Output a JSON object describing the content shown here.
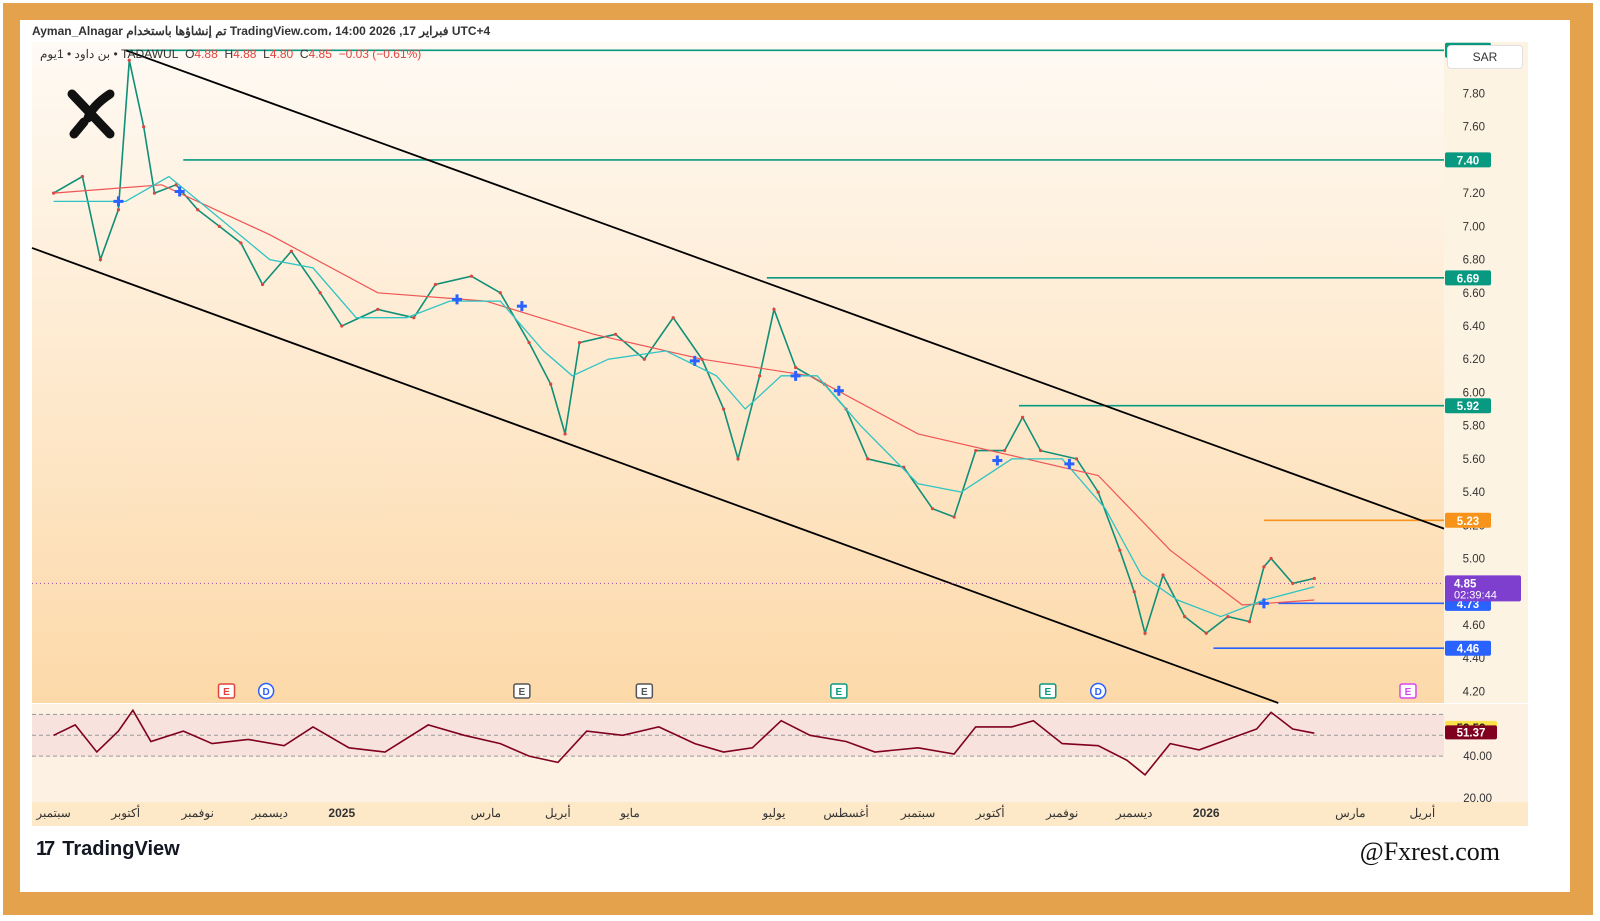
{
  "header": {
    "line1": "Ayman_Alnagar تم إنشاؤها باستخدام TradingView.com، 14:00 2026 ,17 فبراير UTC+4",
    "symbol_desc": "بن داود • 1يوم •",
    "exchange": "TADAWUL",
    "open_label": "O",
    "open": "4.88",
    "high_label": "H",
    "high": "4.88",
    "low_label": "L",
    "low": "4.80",
    "close_label": "C",
    "close": "4.85",
    "change": "−0.03 (−0.61%)",
    "currency": "SAR"
  },
  "footer": {
    "brand": "TradingView",
    "brand_mark": "17",
    "handle": "@Fxrest.com"
  },
  "logo_icon": "x-logo-icon",
  "colors": {
    "background_top": "#fefaf4",
    "background_bottom": "#fdd9a9",
    "level_green": "#089981",
    "level_orange": "#f7931a",
    "level_blue": "#2962ff",
    "channel": "#000000",
    "ma_fast": "#2ec4c4",
    "ma_slow": "#f05454",
    "rsi_line": "#800020",
    "price_label": "#7e3fcf",
    "frame": "#e5a24c"
  },
  "chart_data": {
    "type": "line",
    "title": "",
    "price_axis": {
      "ticks": [
        "8.00",
        "7.80",
        "7.60",
        "7.40",
        "7.20",
        "7.00",
        "6.80",
        "6.60",
        "6.40",
        "6.20",
        "6.00",
        "5.80",
        "5.60",
        "5.40",
        "5.20",
        "5.00",
        "4.80",
        "4.60",
        "4.40",
        "4.20"
      ],
      "ylim": [
        4.13,
        8.11
      ]
    },
    "time_axis": [
      "سبتمبر",
      "أكتوبر",
      "نوفمبر",
      "ديسمبر",
      "2025",
      "مارس",
      "أبريل",
      "مايو",
      "يوليو",
      "أغسطس",
      "سبتمبر",
      "أكتوبر",
      "نوفمبر",
      "ديسمبر",
      "2026",
      "مارس",
      "أبريل"
    ],
    "time_axis_months": [
      0,
      1,
      2,
      3,
      4,
      6,
      7,
      8,
      10,
      11,
      12,
      13,
      14,
      15,
      16,
      18,
      19
    ],
    "xlim_months": [
      -0.3,
      19.3
    ],
    "levels": [
      {
        "value": 8.06,
        "label": "8.06",
        "start_month": 1.0,
        "color": "green"
      },
      {
        "value": 7.4,
        "label": "7.40",
        "start_month": 1.8,
        "color": "green"
      },
      {
        "value": 6.69,
        "label": "6.69",
        "start_month": 9.9,
        "color": "green"
      },
      {
        "value": 5.92,
        "label": "5.92",
        "start_month": 13.4,
        "color": "green"
      },
      {
        "value": 5.23,
        "label": "5.23",
        "start_month": 16.8,
        "color": "orange"
      },
      {
        "value": 4.73,
        "label": "4.73",
        "start_month": 17.0,
        "color": "blue"
      },
      {
        "value": 4.46,
        "label": "4.46",
        "start_month": 16.1,
        "color": "blue"
      }
    ],
    "current_price": {
      "value": 4.85,
      "label": "4.85",
      "countdown": "02:39:44"
    },
    "channel": {
      "upper": [
        {
          "month": 1.0,
          "price": 8.06
        },
        {
          "month": 19.3,
          "price": 5.18
        }
      ],
      "lower": [
        {
          "month": -0.3,
          "price": 6.87
        },
        {
          "month": 17.0,
          "price": 4.13
        }
      ]
    },
    "price_series": [
      {
        "month": 0.0,
        "price": 7.2
      },
      {
        "month": 0.4,
        "price": 7.3
      },
      {
        "month": 0.65,
        "price": 6.8
      },
      {
        "month": 0.9,
        "price": 7.1
      },
      {
        "month": 1.05,
        "price": 8.0
      },
      {
        "month": 1.25,
        "price": 7.6
      },
      {
        "month": 1.4,
        "price": 7.2
      },
      {
        "month": 1.7,
        "price": 7.25
      },
      {
        "month": 2.0,
        "price": 7.1
      },
      {
        "month": 2.3,
        "price": 7.0
      },
      {
        "month": 2.6,
        "price": 6.9
      },
      {
        "month": 2.9,
        "price": 6.65
      },
      {
        "month": 3.3,
        "price": 6.85
      },
      {
        "month": 3.7,
        "price": 6.6
      },
      {
        "month": 4.0,
        "price": 6.4
      },
      {
        "month": 4.5,
        "price": 6.5
      },
      {
        "month": 5.0,
        "price": 6.45
      },
      {
        "month": 5.3,
        "price": 6.65
      },
      {
        "month": 5.8,
        "price": 6.7
      },
      {
        "month": 6.2,
        "price": 6.6
      },
      {
        "month": 6.6,
        "price": 6.3
      },
      {
        "month": 6.9,
        "price": 6.05
      },
      {
        "month": 7.1,
        "price": 5.75
      },
      {
        "month": 7.3,
        "price": 6.3
      },
      {
        "month": 7.8,
        "price": 6.35
      },
      {
        "month": 8.2,
        "price": 6.2
      },
      {
        "month": 8.6,
        "price": 6.45
      },
      {
        "month": 9.0,
        "price": 6.2
      },
      {
        "month": 9.3,
        "price": 5.9
      },
      {
        "month": 9.5,
        "price": 5.6
      },
      {
        "month": 9.8,
        "price": 6.1
      },
      {
        "month": 10.0,
        "price": 6.5
      },
      {
        "month": 10.3,
        "price": 6.15
      },
      {
        "month": 10.7,
        "price": 6.05
      },
      {
        "month": 11.0,
        "price": 5.9
      },
      {
        "month": 11.3,
        "price": 5.6
      },
      {
        "month": 11.8,
        "price": 5.55
      },
      {
        "month": 12.2,
        "price": 5.3
      },
      {
        "month": 12.5,
        "price": 5.25
      },
      {
        "month": 12.8,
        "price": 5.65
      },
      {
        "month": 13.2,
        "price": 5.65
      },
      {
        "month": 13.45,
        "price": 5.85
      },
      {
        "month": 13.7,
        "price": 5.65
      },
      {
        "month": 14.2,
        "price": 5.6
      },
      {
        "month": 14.5,
        "price": 5.4
      },
      {
        "month": 14.8,
        "price": 5.05
      },
      {
        "month": 15.0,
        "price": 4.8
      },
      {
        "month": 15.15,
        "price": 4.55
      },
      {
        "month": 15.4,
        "price": 4.9
      },
      {
        "month": 15.7,
        "price": 4.65
      },
      {
        "month": 16.0,
        "price": 4.55
      },
      {
        "month": 16.3,
        "price": 4.65
      },
      {
        "month": 16.6,
        "price": 4.62
      },
      {
        "month": 16.8,
        "price": 4.95
      },
      {
        "month": 16.9,
        "price": 5.0
      },
      {
        "month": 17.2,
        "price": 4.85
      },
      {
        "month": 17.5,
        "price": 4.88
      }
    ],
    "ma_fast": [
      {
        "month": 0.0,
        "price": 7.15
      },
      {
        "month": 1.0,
        "price": 7.15
      },
      {
        "month": 1.6,
        "price": 7.3
      },
      {
        "month": 2.3,
        "price": 7.05
      },
      {
        "month": 3.0,
        "price": 6.8
      },
      {
        "month": 3.6,
        "price": 6.75
      },
      {
        "month": 4.2,
        "price": 6.45
      },
      {
        "month": 4.9,
        "price": 6.45
      },
      {
        "month": 5.5,
        "price": 6.55
      },
      {
        "month": 6.2,
        "price": 6.55
      },
      {
        "month": 6.8,
        "price": 6.25
      },
      {
        "month": 7.2,
        "price": 6.1
      },
      {
        "month": 7.7,
        "price": 6.2
      },
      {
        "month": 8.5,
        "price": 6.25
      },
      {
        "month": 9.2,
        "price": 6.1
      },
      {
        "month": 9.6,
        "price": 5.9
      },
      {
        "month": 10.1,
        "price": 6.1
      },
      {
        "month": 10.6,
        "price": 6.1
      },
      {
        "month": 11.2,
        "price": 5.8
      },
      {
        "month": 12.0,
        "price": 5.45
      },
      {
        "month": 12.6,
        "price": 5.4
      },
      {
        "month": 13.3,
        "price": 5.6
      },
      {
        "month": 14.0,
        "price": 5.6
      },
      {
        "month": 14.6,
        "price": 5.3
      },
      {
        "month": 15.1,
        "price": 4.9
      },
      {
        "month": 15.6,
        "price": 4.75
      },
      {
        "month": 16.2,
        "price": 4.65
      },
      {
        "month": 16.8,
        "price": 4.75
      },
      {
        "month": 17.5,
        "price": 4.83
      }
    ],
    "ma_slow": [
      {
        "month": 0.0,
        "price": 7.2
      },
      {
        "month": 1.5,
        "price": 7.25
      },
      {
        "month": 3.0,
        "price": 6.95
      },
      {
        "month": 4.5,
        "price": 6.6
      },
      {
        "month": 6.0,
        "price": 6.55
      },
      {
        "month": 7.5,
        "price": 6.35
      },
      {
        "month": 9.0,
        "price": 6.2
      },
      {
        "month": 10.5,
        "price": 6.1
      },
      {
        "month": 12.0,
        "price": 5.75
      },
      {
        "month": 13.5,
        "price": 5.6
      },
      {
        "month": 14.5,
        "price": 5.5
      },
      {
        "month": 15.5,
        "price": 5.05
      },
      {
        "month": 16.5,
        "price": 4.72
      },
      {
        "month": 17.5,
        "price": 4.75
      }
    ],
    "cross_markers": [
      {
        "month": 0.9,
        "price": 7.15
      },
      {
        "month": 1.75,
        "price": 7.21
      },
      {
        "month": 5.6,
        "price": 6.56
      },
      {
        "month": 6.5,
        "price": 6.52
      },
      {
        "month": 8.9,
        "price": 6.19
      },
      {
        "month": 10.3,
        "price": 6.1
      },
      {
        "month": 10.9,
        "price": 6.01
      },
      {
        "month": 13.1,
        "price": 5.59
      },
      {
        "month": 14.1,
        "price": 5.57
      },
      {
        "month": 16.8,
        "price": 4.73
      }
    ],
    "event_badges": [
      {
        "month": 2.4,
        "label": "E",
        "color": "#e0443e"
      },
      {
        "month": 2.95,
        "label": "D",
        "color": "#2962ff"
      },
      {
        "month": 6.5,
        "label": "E",
        "color": "#555555"
      },
      {
        "month": 8.2,
        "label": "E",
        "color": "#555555"
      },
      {
        "month": 10.9,
        "label": "E",
        "color": "#089981"
      },
      {
        "month": 13.8,
        "label": "E",
        "color": "#089981"
      },
      {
        "month": 14.5,
        "label": "D",
        "color": "#2962ff"
      },
      {
        "month": 18.8,
        "label": "E",
        "color": "#d946ef"
      }
    ],
    "rsi": {
      "ylabel_ticks": [
        "40.00",
        "20.00"
      ],
      "current": {
        "fast": "53.53",
        "slow": "51.37"
      },
      "band_upper": 60,
      "band_lower": 40,
      "ylim": [
        18,
        65
      ],
      "values": [
        {
          "month": 0.0,
          "value": 50
        },
        {
          "month": 0.3,
          "value": 55
        },
        {
          "month": 0.6,
          "value": 42
        },
        {
          "month": 0.9,
          "value": 52
        },
        {
          "month": 1.1,
          "value": 62
        },
        {
          "month": 1.35,
          "value": 47
        },
        {
          "month": 1.8,
          "value": 52
        },
        {
          "month": 2.2,
          "value": 46
        },
        {
          "month": 2.7,
          "value": 48
        },
        {
          "month": 3.2,
          "value": 45
        },
        {
          "month": 3.6,
          "value": 54
        },
        {
          "month": 4.1,
          "value": 44
        },
        {
          "month": 4.6,
          "value": 42
        },
        {
          "month": 5.2,
          "value": 55
        },
        {
          "month": 5.7,
          "value": 50
        },
        {
          "month": 6.2,
          "value": 46
        },
        {
          "month": 6.6,
          "value": 40
        },
        {
          "month": 7.0,
          "value": 37
        },
        {
          "month": 7.4,
          "value": 52
        },
        {
          "month": 7.9,
          "value": 50
        },
        {
          "month": 8.4,
          "value": 54
        },
        {
          "month": 8.9,
          "value": 46
        },
        {
          "month": 9.3,
          "value": 42
        },
        {
          "month": 9.7,
          "value": 44
        },
        {
          "month": 10.1,
          "value": 57
        },
        {
          "month": 10.5,
          "value": 50
        },
        {
          "month": 11.0,
          "value": 47
        },
        {
          "month": 11.4,
          "value": 42
        },
        {
          "month": 12.0,
          "value": 44
        },
        {
          "month": 12.5,
          "value": 41
        },
        {
          "month": 12.8,
          "value": 54
        },
        {
          "month": 13.3,
          "value": 54
        },
        {
          "month": 13.6,
          "value": 57
        },
        {
          "month": 14.0,
          "value": 46
        },
        {
          "month": 14.5,
          "value": 45
        },
        {
          "month": 14.9,
          "value": 38
        },
        {
          "month": 15.15,
          "value": 31
        },
        {
          "month": 15.5,
          "value": 46
        },
        {
          "month": 15.9,
          "value": 43
        },
        {
          "month": 16.3,
          "value": 48
        },
        {
          "month": 16.7,
          "value": 53
        },
        {
          "month": 16.9,
          "value": 61
        },
        {
          "month": 17.2,
          "value": 53
        },
        {
          "month": 17.5,
          "value": 51
        }
      ]
    }
  }
}
